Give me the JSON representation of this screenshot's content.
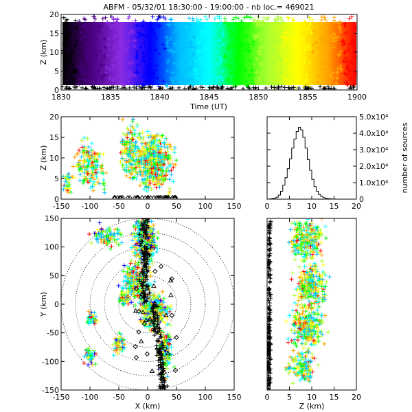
{
  "title": "ABFM - 05/32/01 18:30:00 - 19:00:00 - nb loc.= 469021",
  "chart_data": [
    {
      "id": "time-height",
      "type": "scatter",
      "xlabel": "Time (UT)",
      "ylabel": "Z (km)",
      "xlim": [
        1830,
        1900
      ],
      "ylim": [
        0,
        20
      ],
      "xticks": [
        "1830",
        "1835",
        "1840",
        "1845",
        "1850",
        "1855",
        "1900"
      ],
      "yticks": [
        "0",
        "5",
        "10",
        "15",
        "20"
      ],
      "color_scale": [
        "#000000",
        "#4b0082",
        "#8a2be2",
        "#0000ff",
        "#00bfff",
        "#00ffff",
        "#00ff00",
        "#adff2f",
        "#ffff00",
        "#ffa500",
        "#ff0000"
      ],
      "series": [
        {
          "values": [
            [
              1830,
              10
            ],
            [
              1835,
              10
            ],
            [
              1840,
              10
            ],
            [
              1845,
              10
            ],
            [
              1850,
              10
            ],
            [
              1855,
              10
            ],
            [
              1900,
              10
            ]
          ]
        }
      ]
    },
    {
      "id": "x-z",
      "type": "scatter",
      "ylabel": "Z (km)",
      "xlim": [
        -150,
        150
      ],
      "ylim": [
        0,
        20
      ],
      "xticks": [
        "-150",
        "-100",
        "-50",
        "0",
        "50",
        "100",
        "150"
      ],
      "yticks": [
        "0",
        "5",
        "10",
        "15",
        "20"
      ],
      "series": [
        {
          "values": [
            [
              -30,
              12
            ],
            [
              -10,
              16
            ],
            [
              0,
              10
            ],
            [
              10,
              14
            ],
            [
              20,
              8
            ],
            [
              -120,
              6
            ],
            [
              -90,
              8
            ]
          ]
        }
      ]
    },
    {
      "id": "height-histogram",
      "type": "bar",
      "ylabel": "number of sources",
      "xlim": [
        0,
        20
      ],
      "ylim": [
        0,
        50000
      ],
      "xticks": [
        "0",
        "5",
        "10",
        "15",
        "20"
      ],
      "yticks": [
        "0",
        "1.0x10⁴",
        "2.0x10⁴",
        "3.0x10⁴",
        "4.0x10⁴",
        "5.0x10⁴"
      ],
      "x": [
        0.0,
        0.5,
        1.0,
        1.5,
        2.0,
        2.5,
        3.0,
        3.5,
        4.0,
        4.5,
        5.0,
        5.5,
        6.0,
        6.5,
        7.0,
        7.5,
        8.0,
        8.5,
        9.0,
        9.5,
        10.0,
        10.5,
        11.0,
        11.5,
        12.0,
        12.5,
        13.0,
        13.5,
        14.0,
        14.5,
        15.0,
        15.5,
        16.0,
        16.5,
        17.0,
        17.5,
        18.0,
        18.5,
        19.0,
        19.5
      ],
      "values": [
        0,
        100,
        300,
        600,
        1200,
        2500,
        4800,
        8500,
        13000,
        18500,
        24500,
        31000,
        36500,
        41000,
        43500,
        42000,
        37500,
        31000,
        24000,
        17500,
        12000,
        7600,
        4800,
        2800,
        1600,
        900,
        500,
        300,
        150,
        80,
        40,
        20,
        10,
        0,
        0,
        0,
        0,
        0,
        0,
        0
      ]
    },
    {
      "id": "x-y-plan",
      "type": "scatter",
      "xlabel": "X (km)",
      "ylabel": "Y (km)",
      "xlim": [
        -150,
        150
      ],
      "ylim": [
        -150,
        150
      ],
      "xticks": [
        "-150",
        "-100",
        "-50",
        "0",
        "50",
        "100",
        "150"
      ],
      "yticks": [
        "-150",
        "-100",
        "-50",
        "0",
        "50",
        "100",
        "150"
      ],
      "range_rings_km": [
        25,
        50,
        75,
        100,
        125,
        150
      ],
      "series": [
        {
          "values": [
            [
              0,
              140
            ],
            [
              -20,
              80
            ],
            [
              -10,
              20
            ],
            [
              10,
              -20
            ],
            [
              20,
              -60
            ],
            [
              40,
              -120
            ],
            [
              -90,
              -80
            ]
          ]
        }
      ]
    },
    {
      "id": "z-y",
      "type": "scatter",
      "xlabel": "Z (km)",
      "xlim": [
        0,
        20
      ],
      "ylim": [
        -150,
        150
      ],
      "xticks": [
        "0",
        "5",
        "10",
        "15",
        "20"
      ],
      "yticks": [
        "-150",
        "-100",
        "-50",
        "0",
        "50",
        "100",
        "150"
      ],
      "series": [
        {
          "values": [
            [
              10,
              140
            ],
            [
              8,
              80
            ],
            [
              12,
              20
            ],
            [
              9,
              -30
            ],
            [
              10,
              -80
            ],
            [
              6,
              -120
            ]
          ]
        }
      ]
    }
  ]
}
